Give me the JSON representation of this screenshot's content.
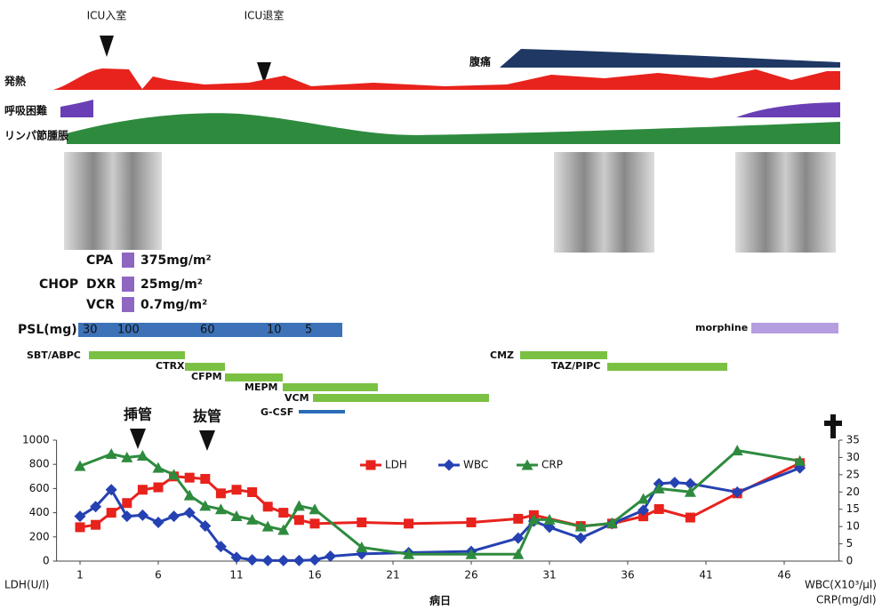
{
  "timeline": {
    "icu_in": "ICU入室",
    "icu_out": "ICU退室",
    "symptoms": {
      "abdominal_pain": "腹痛",
      "fever": "発熱",
      "dyspnea": "呼吸困難",
      "lymph": "リンパ節腫脹"
    }
  },
  "chop": {
    "label": "CHOP",
    "drugs": [
      {
        "name": "CPA",
        "dose": "375mg/m²"
      },
      {
        "name": "DXR",
        "dose": "25mg/m²"
      },
      {
        "name": "VCR",
        "dose": "0.7mg/m²"
      }
    ]
  },
  "psl": {
    "label": "PSL(mg)",
    "doses": [
      30,
      100,
      60,
      10,
      5
    ]
  },
  "morphine": "morphine",
  "antibiotics": [
    "SBT/ABPC",
    "CTRX",
    "CFPM",
    "MEPM",
    "VCM",
    "G-CSF",
    "CMZ",
    "TAZ/PIPC"
  ],
  "chart_data": {
    "type": "line",
    "x_label": "病日",
    "y_label": "LDH(U/l)",
    "y2_label": [
      "WBC(X10³/μl)",
      "CRP(mg/dl)"
    ],
    "annotations": [
      "挿管",
      "抜管"
    ],
    "xlim": [
      -0.5,
      49.5
    ],
    "xticks": [
      1,
      6,
      11,
      16,
      21,
      26,
      31,
      36,
      41,
      46
    ],
    "ylim": [
      0,
      1000
    ],
    "yticks": [
      0,
      200,
      400,
      600,
      800,
      1000
    ],
    "y2lim": [
      0,
      35
    ],
    "y2ticks": [
      0,
      5,
      10,
      15,
      20,
      25,
      30,
      35
    ],
    "series": [
      {
        "name": "LDH",
        "color": "#e8221c",
        "marker": "square",
        "x": [
          1,
          2,
          3,
          4,
          5,
          6,
          7,
          8,
          9,
          10,
          11,
          12,
          13,
          14,
          15,
          16,
          19,
          22,
          26,
          29,
          30,
          33,
          35,
          37,
          38,
          40,
          43,
          47
        ],
        "values": [
          280,
          300,
          400,
          480,
          590,
          610,
          700,
          690,
          680,
          560,
          590,
          570,
          450,
          400,
          340,
          310,
          320,
          310,
          320,
          350,
          380,
          290,
          310,
          370,
          430,
          360,
          560,
          810
        ]
      },
      {
        "name": "WBC",
        "color": "#2541b2",
        "marker": "diamond",
        "x": [
          1,
          2,
          3,
          4,
          5,
          6,
          7,
          8,
          9,
          10,
          11,
          12,
          13,
          14,
          15,
          16,
          17,
          19,
          22,
          26,
          29,
          30,
          31,
          33,
          35,
          37,
          38,
          39,
          40,
          43,
          47
        ],
        "values": [
          370,
          450,
          590,
          370,
          380,
          320,
          370,
          400,
          290,
          120,
          30,
          10,
          5,
          5,
          5,
          10,
          40,
          60,
          70,
          80,
          190,
          330,
          280,
          190,
          310,
          420,
          640,
          650,
          640,
          570,
          770
        ]
      },
      {
        "name": "CRP",
        "color": "#2e8b3e",
        "marker": "triangle",
        "axis": "y2",
        "x": [
          1,
          3,
          4,
          5,
          6,
          7,
          8,
          9,
          10,
          11,
          12,
          13,
          14,
          15,
          16,
          19,
          22,
          26,
          29,
          30,
          31,
          33,
          35,
          37,
          38,
          40,
          43,
          47
        ],
        "values": [
          27.5,
          31,
          30,
          30.5,
          27,
          25,
          19,
          16,
          15,
          13,
          12,
          10,
          9,
          16,
          15,
          4,
          2,
          2,
          2,
          12,
          12,
          10,
          11,
          18,
          21,
          20,
          32,
          29
        ]
      }
    ]
  }
}
